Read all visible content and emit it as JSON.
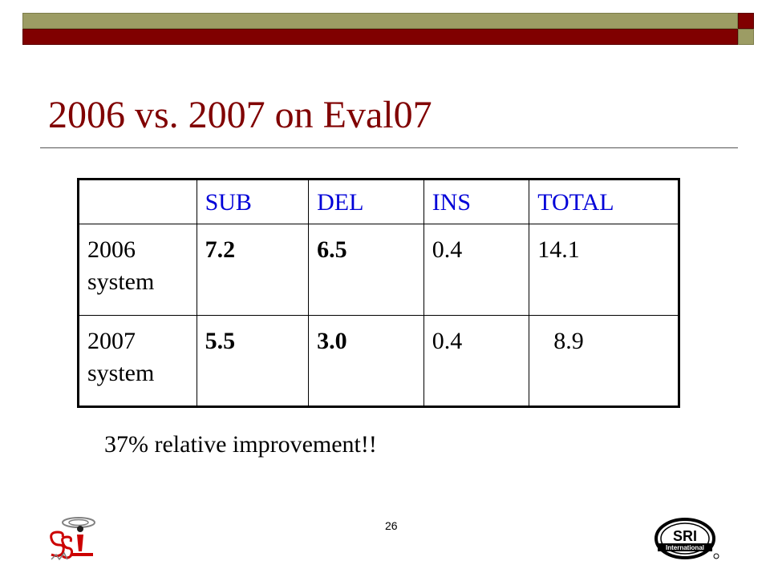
{
  "slide": {
    "title": "2006 vs. 2007 on Eval07",
    "note": "37% relative  improvement!!",
    "page_number": "26",
    "header_color": "#0000d8",
    "title_color": "#800000"
  },
  "table": {
    "headers": [
      "",
      "SUB",
      "DEL",
      "INS",
      "TOTAL"
    ],
    "rows": [
      {
        "label_line1": "2006",
        "label_line2": "system",
        "sub": "7.2",
        "del": "6.5",
        "ins": "0.4",
        "total": "14.1"
      },
      {
        "label_line1": "2007",
        "label_line2": "system",
        "sub": "5.5",
        "del": "3.0",
        "ins": "0.4",
        "total": "8.9"
      }
    ]
  },
  "logos": {
    "left": "SSL",
    "right_main": "SRI",
    "right_sub": "International"
  }
}
